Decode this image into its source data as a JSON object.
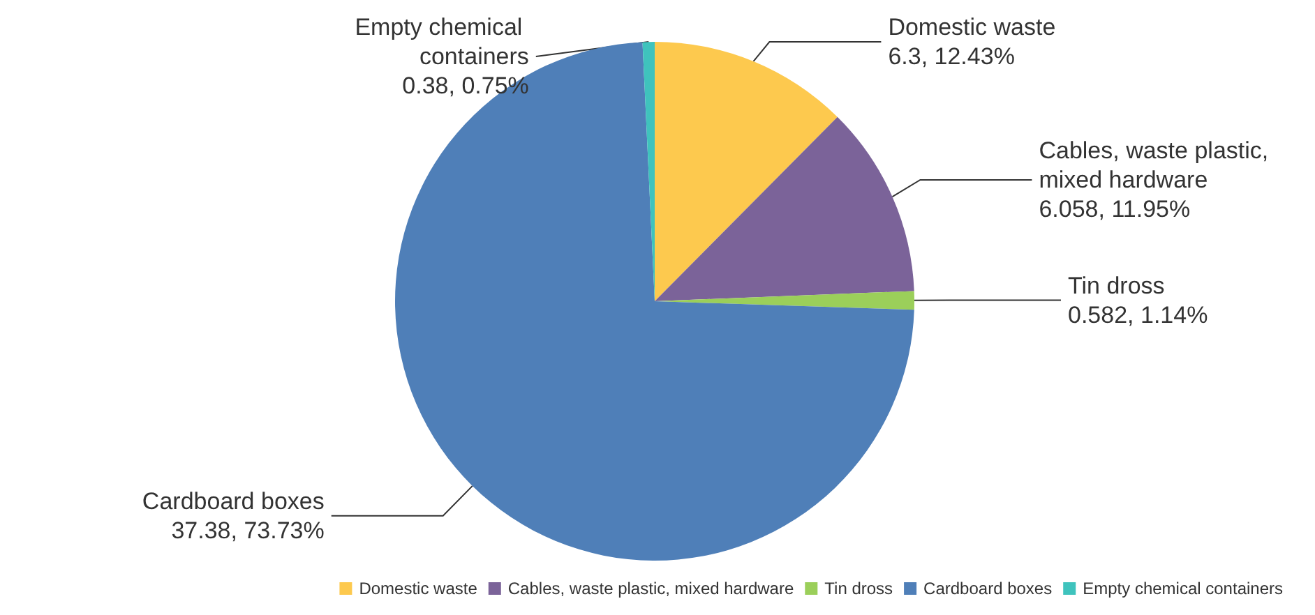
{
  "chart_data": {
    "type": "pie",
    "categories": [
      "Domestic waste",
      "Cables, waste plastic, mixed hardware",
      "Tin dross",
      "Cardboard boxes",
      "Empty chemical containers"
    ],
    "values": [
      6.3,
      6.058,
      0.582,
      37.38,
      0.38
    ],
    "value_labels": [
      "6.3, 12.43%",
      "6.058, 11.95%",
      "0.582, 1.14%",
      "37.38, 73.73%",
      "0.38, 0.75%"
    ],
    "colors": [
      "#fdc94e",
      "#7b6399",
      "#9bcf5a",
      "#4f7fb8",
      "#3fc3bd"
    ],
    "legend": "bottom"
  }
}
